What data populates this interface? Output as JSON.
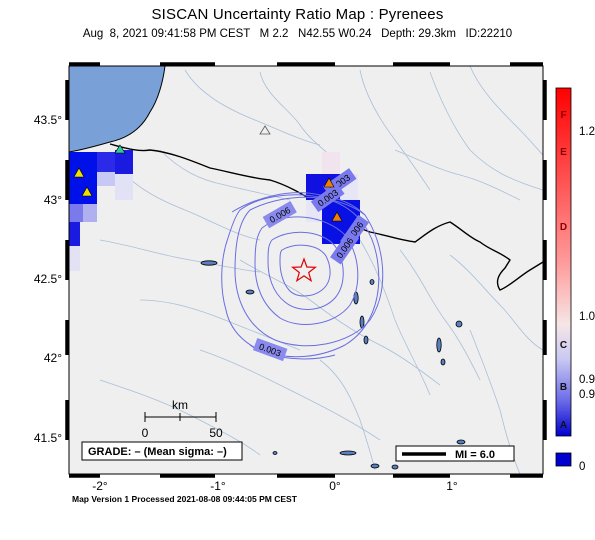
{
  "header": {
    "title": "SISCAN Uncertainty Ratio Map : Pyrenees",
    "subtitle": "Aug  8, 2021 09:41:58 PM CEST   M 2.2   N42.55 W0.24   Depth: 29.3km   ID:22210"
  },
  "map": {
    "lon_labels": [
      "-2°",
      "-1°",
      "0°",
      "1°"
    ],
    "lat_labels": [
      "43.5°",
      "43°",
      "42.5°",
      "42°",
      "41.5°"
    ],
    "contour_labels": [
      "0.003",
      "0.003",
      "0.006",
      "0.006",
      "0.006",
      "0.003"
    ],
    "scale_bar": {
      "title": "km",
      "min": "0",
      "max": "50"
    },
    "grade_box": "GRADE: – (Mean sigma: –)",
    "mi_box": "MI = 6.0"
  },
  "colorbar": {
    "letters": [
      "F",
      "E",
      "D",
      "C",
      "B",
      "A"
    ],
    "values": [
      "1.2",
      "1.0",
      "0.9",
      "0.9",
      "0"
    ]
  },
  "footer": "Map Version 1 Processed 2021-08-08 09:44:05 PM CEST"
}
